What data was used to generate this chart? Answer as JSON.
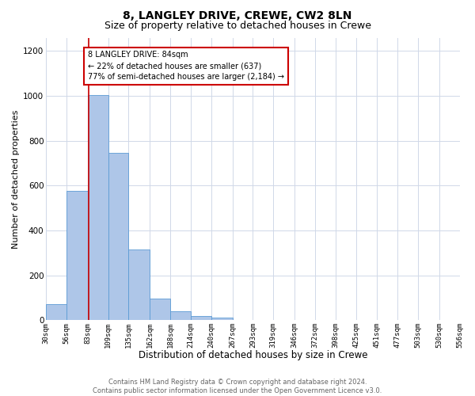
{
  "title": "8, LANGLEY DRIVE, CREWE, CW2 8LN",
  "subtitle": "Size of property relative to detached houses in Crewe",
  "xlabel": "Distribution of detached houses by size in Crewe",
  "ylabel": "Number of detached properties",
  "bin_edges": [
    30,
    56,
    83,
    109,
    135,
    162,
    188,
    214,
    240,
    267,
    293,
    319,
    346,
    372,
    398,
    425,
    451,
    477,
    503,
    530,
    556
  ],
  "bin_counts": [
    70,
    575,
    1005,
    745,
    315,
    95,
    40,
    20,
    10,
    0,
    0,
    0,
    0,
    0,
    0,
    0,
    0,
    0,
    0,
    0
  ],
  "bar_color": "#aec6e8",
  "bar_edge_color": "#5b9bd5",
  "property_size": 84,
  "vline_color": "#cc0000",
  "annotation_line1": "8 LANGLEY DRIVE: 84sqm",
  "annotation_line2": "← 22% of detached houses are smaller (637)",
  "annotation_line3": "77% of semi-detached houses are larger (2,184) →",
  "annotation_box_color": "#ffffff",
  "annotation_box_edge_color": "#cc0000",
  "ylim": [
    0,
    1260
  ],
  "yticks": [
    0,
    200,
    400,
    600,
    800,
    1000,
    1200
  ],
  "grid_color": "#d0d8e8",
  "footer_text": "Contains HM Land Registry data © Crown copyright and database right 2024.\nContains public sector information licensed under the Open Government Licence v3.0.",
  "bg_color": "#ffffff",
  "title_fontsize": 10,
  "subtitle_fontsize": 9,
  "xlabel_fontsize": 8.5,
  "ylabel_fontsize": 8,
  "tick_labels": [
    "30sqm",
    "56sqm",
    "83sqm",
    "109sqm",
    "135sqm",
    "162sqm",
    "188sqm",
    "214sqm",
    "240sqm",
    "267sqm",
    "293sqm",
    "319sqm",
    "346sqm",
    "372sqm",
    "398sqm",
    "425sqm",
    "451sqm",
    "477sqm",
    "503sqm",
    "530sqm",
    "556sqm"
  ]
}
